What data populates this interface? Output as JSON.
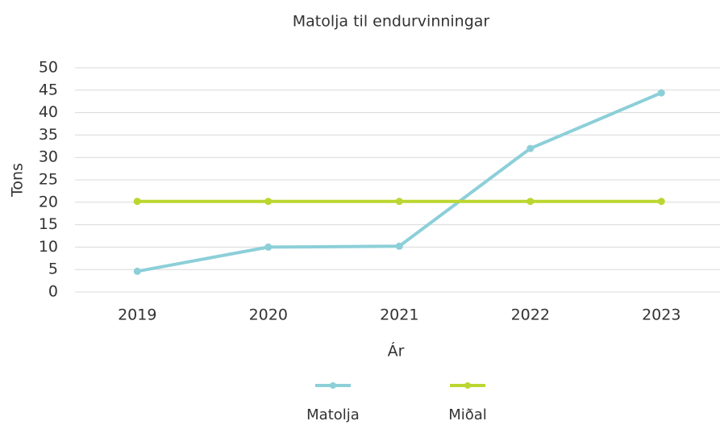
{
  "chart_data": {
    "type": "line",
    "title": "Matolja til endurvinningar",
    "y_label": "Tons",
    "x_label": "Ár",
    "categories": [
      "2019",
      "2020",
      "2021",
      "2022",
      "2023"
    ],
    "series": [
      {
        "name": "Matolja",
        "color": "#8ccfd8",
        "values": [
          4.6,
          10,
          10.2,
          32,
          44.4
        ]
      },
      {
        "name": "Miðal",
        "color": "#bcd631",
        "values": [
          20.2,
          20.2,
          20.2,
          20.2,
          20.2
        ]
      }
    ],
    "ylim": [
      0,
      50
    ],
    "yticks": [
      0,
      5,
      10,
      15,
      20,
      25,
      30,
      35,
      40,
      45,
      50
    ],
    "grid": true,
    "legend": "bottom"
  }
}
